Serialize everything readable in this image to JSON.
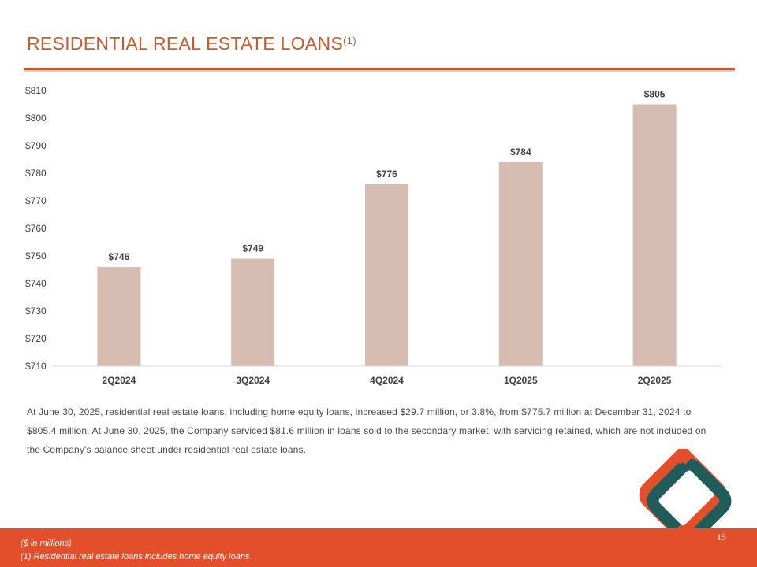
{
  "slide": {
    "title": "RESIDENTIAL REAL ESTATE LOANS",
    "title_superscript": "(1)",
    "body": "At June 30, 2025, residential real estate loans, including home equity loans, increased $29.7 million, or 3.8%, from $775.7 million at December 31, 2024 to $805.4 million. At June 30, 2025, the Company serviced $81.6 million in loans sold to the secondary market, with servicing retained, which are not included on the Company's balance sheet under residential real estate loans.",
    "footnote_units": "($ in millions)",
    "footnote_1": "(1) Residential real estate loans includes home equity loans.",
    "page_number": "15",
    "logo_icon": "diamond-logo-icon"
  },
  "colors": {
    "title": "#c85a2c",
    "rule": "#c8552c",
    "bar": "#d7bcb2",
    "footer": "#e34f2a",
    "logo_orange": "#e34f2a",
    "logo_teal": "#1f5c5a"
  },
  "chart_data": {
    "type": "bar",
    "categories": [
      "2Q2024",
      "3Q2024",
      "4Q2024",
      "1Q2025",
      "2Q2025"
    ],
    "values": [
      746,
      749,
      776,
      784,
      805
    ],
    "data_labels": [
      "$746",
      "$749",
      "$776",
      "$784",
      "$805"
    ],
    "y_ticks": [
      710,
      720,
      730,
      740,
      750,
      760,
      770,
      780,
      790,
      800,
      810
    ],
    "y_tick_labels": [
      "$710",
      "$720",
      "$730",
      "$740",
      "$750",
      "$760",
      "$770",
      "$780",
      "$790",
      "$800",
      "$810"
    ],
    "ylim": [
      710,
      810
    ],
    "title": "",
    "xlabel": "",
    "ylabel": "",
    "grid": false,
    "legend": "none"
  }
}
